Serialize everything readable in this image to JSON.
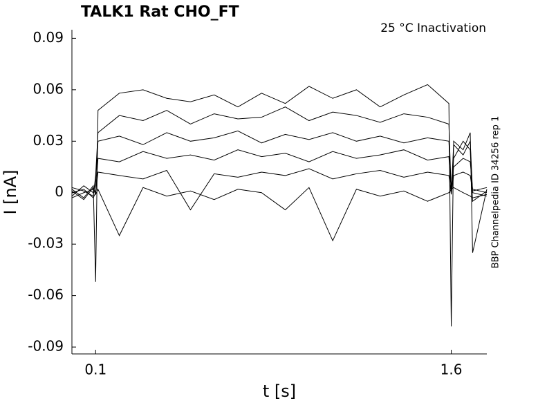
{
  "chart_data": {
    "type": "line",
    "title": "TALK1  Rat  CHO_FT",
    "annotation": "25 °C  Inactivation",
    "side_note": "BBP Channelpedia ID 34256 rep 1",
    "x_label": "t [s]",
    "y_label": "I [nA]",
    "xlim": [
      0,
      1.75
    ],
    "ylim": [
      -0.094,
      0.095
    ],
    "xticks": [
      0.1,
      1.6
    ],
    "yticks": [
      0.09,
      0.06,
      0.03,
      0,
      -0.03,
      -0.06,
      -0.09
    ],
    "grid": false,
    "x": [
      0,
      0.05,
      0.09,
      0.1,
      0.11,
      0.2,
      0.3,
      0.4,
      0.5,
      0.6,
      0.7,
      0.8,
      0.9,
      1.0,
      1.1,
      1.2,
      1.3,
      1.4,
      1.5,
      1.59,
      1.6,
      1.61,
      1.65,
      1.68,
      1.69,
      1.75
    ],
    "series": [
      {
        "color": "#000000",
        "values": [
          0.002,
          -0.003,
          0.004,
          -0.052,
          0.048,
          0.058,
          0.06,
          0.055,
          0.053,
          0.057,
          0.05,
          0.058,
          0.052,
          0.062,
          0.055,
          0.06,
          0.05,
          0.057,
          0.063,
          0.052,
          -0.078,
          0.03,
          0.025,
          0.035,
          -0.035,
          0.002
        ]
      },
      {
        "color": "#000000",
        "values": [
          0.003,
          0.001,
          -0.002,
          0.01,
          0.035,
          0.045,
          0.042,
          0.048,
          0.04,
          0.046,
          0.043,
          0.044,
          0.05,
          0.042,
          0.047,
          0.045,
          0.041,
          0.046,
          0.044,
          0.04,
          0.0,
          0.028,
          0.022,
          0.03,
          0.0,
          -0.002
        ]
      },
      {
        "color": "#000000",
        "values": [
          -0.002,
          0.004,
          0.0,
          0.005,
          0.03,
          0.033,
          0.028,
          0.035,
          0.03,
          0.032,
          0.036,
          0.029,
          0.034,
          0.031,
          0.035,
          0.03,
          0.033,
          0.029,
          0.032,
          0.03,
          0.002,
          0.02,
          0.03,
          0.025,
          -0.005,
          0.001
        ]
      },
      {
        "color": "#000000",
        "values": [
          0.001,
          -0.004,
          0.003,
          0.0,
          0.02,
          0.018,
          0.024,
          0.02,
          0.022,
          0.019,
          0.025,
          0.021,
          0.023,
          0.018,
          0.024,
          0.02,
          0.022,
          0.025,
          0.019,
          0.021,
          0.0,
          0.015,
          0.02,
          0.018,
          0.002,
          0.0
        ]
      },
      {
        "color": "#000000",
        "values": [
          0.0,
          0.002,
          -0.003,
          0.0,
          0.012,
          0.01,
          0.008,
          0.013,
          -0.01,
          0.011,
          0.009,
          0.012,
          0.01,
          0.014,
          0.008,
          0.011,
          0.013,
          0.009,
          0.012,
          0.01,
          -0.001,
          0.01,
          0.012,
          0.01,
          0.001,
          0.003
        ]
      },
      {
        "color": "#000000",
        "values": [
          -0.003,
          0.0,
          0.002,
          -0.001,
          0.002,
          -0.025,
          0.003,
          -0.002,
          0.001,
          -0.004,
          0.002,
          0.0,
          -0.01,
          0.003,
          -0.028,
          0.002,
          -0.002,
          0.001,
          -0.005,
          0.0,
          0.002,
          0.003,
          0.0,
          -0.002,
          -0.003,
          -0.001
        ]
      }
    ]
  }
}
